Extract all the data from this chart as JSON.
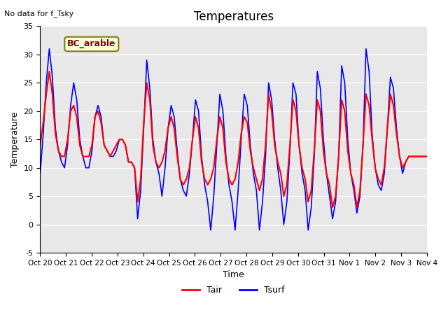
{
  "title": "Temperatures",
  "xlabel": "Time",
  "ylabel": "Temperature",
  "top_left_text": "No data for f_Tsky",
  "annotation_box": "BC_arable",
  "ylim": [
    -5,
    35
  ],
  "xlim": [
    0,
    15
  ],
  "background_color": "#e8e8e8",
  "tair_color": "red",
  "tsurf_color": "blue",
  "xtick_labels": [
    "Oct 20",
    "Oct 21",
    "Oct 22",
    "Oct 23",
    "Oct 24",
    "Oct 25",
    "Oct 26",
    "Oct 27",
    "Oct 28",
    "Oct 29",
    "Oct 30",
    "Oct 31",
    "Nov 1",
    "Nov 2",
    "Nov 3",
    "Nov 4"
  ],
  "ytick_labels": [
    "-5",
    "0",
    "5",
    "10",
    "15",
    "20",
    "25",
    "30",
    "35"
  ],
  "ytick_values": [
    -5,
    0,
    5,
    10,
    15,
    20,
    25,
    30,
    35
  ],
  "tair_data": [
    14,
    18,
    23,
    27,
    23,
    16,
    13,
    12,
    12,
    15,
    20,
    21,
    19,
    14,
    12,
    12,
    12,
    14,
    19,
    20,
    18,
    14,
    13,
    12,
    13,
    14,
    15,
    15,
    14,
    11,
    11,
    10,
    4,
    8,
    18,
    25,
    22,
    14,
    11,
    10,
    11,
    13,
    17,
    19,
    17,
    12,
    8,
    7,
    8,
    10,
    15,
    19,
    17,
    11,
    8,
    7,
    8,
    10,
    15,
    19,
    17,
    11,
    8,
    7,
    8,
    11,
    16,
    19,
    18,
    13,
    10,
    8,
    6,
    8,
    14,
    23,
    20,
    14,
    11,
    9,
    5,
    7,
    14,
    22,
    20,
    14,
    10,
    8,
    4,
    6,
    13,
    22,
    20,
    13,
    9,
    7,
    3,
    5,
    12,
    22,
    20,
    13,
    9,
    7,
    3,
    6,
    14,
    23,
    21,
    15,
    10,
    8,
    7,
    10,
    17,
    23,
    21,
    16,
    12,
    10,
    11,
    12,
    12,
    12,
    12,
    12,
    12,
    12
  ],
  "tsurf_data": [
    9,
    16,
    25,
    31,
    26,
    17,
    13,
    11,
    10,
    14,
    21,
    25,
    22,
    15,
    12,
    10,
    10,
    13,
    19,
    21,
    19,
    14,
    13,
    12,
    12,
    13,
    15,
    15,
    14,
    11,
    11,
    10,
    1,
    6,
    17,
    29,
    24,
    15,
    11,
    9,
    5,
    10,
    17,
    21,
    19,
    13,
    8,
    6,
    5,
    9,
    15,
    22,
    20,
    12,
    7,
    4,
    -1,
    5,
    14,
    23,
    20,
    12,
    7,
    4,
    -1,
    6,
    15,
    23,
    21,
    14,
    9,
    6,
    -1,
    4,
    12,
    25,
    22,
    15,
    10,
    6,
    0,
    4,
    13,
    25,
    23,
    14,
    9,
    6,
    -1,
    3,
    12,
    27,
    24,
    15,
    9,
    5,
    1,
    4,
    12,
    28,
    25,
    15,
    9,
    6,
    2,
    5,
    14,
    31,
    27,
    16,
    10,
    7,
    6,
    9,
    17,
    26,
    24,
    17,
    12,
    9,
    11,
    12,
    12,
    12,
    12,
    12,
    12,
    12
  ]
}
